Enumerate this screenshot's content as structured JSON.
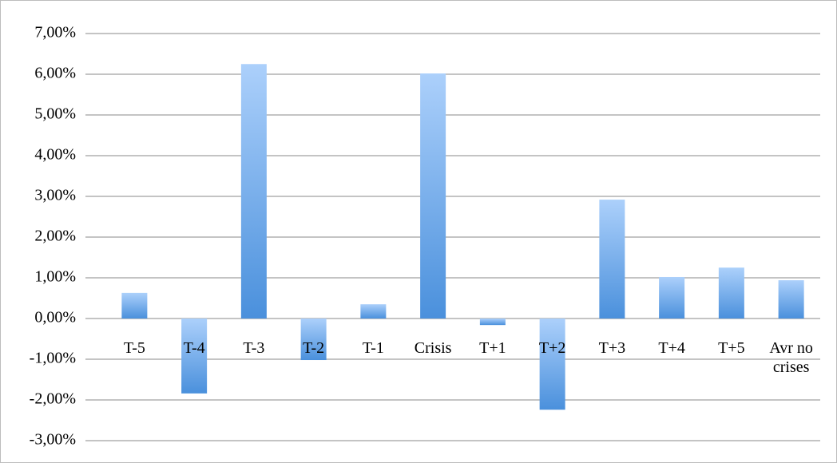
{
  "chart_data": {
    "type": "bar",
    "categories": [
      "T-5",
      "T-4",
      "T-3",
      "T-2",
      "T-1",
      "Crisis",
      "T+1",
      "T+2",
      "T+3",
      "T+4",
      "T+5",
      "Avr no crises"
    ],
    "values": [
      0.63,
      -1.84,
      6.25,
      -1.02,
      0.35,
      6.02,
      -0.16,
      -2.24,
      2.92,
      1.02,
      1.25,
      0.94
    ],
    "color": "#4a90dc",
    "ylim": [
      -3,
      7
    ],
    "yticks": [
      {
        "value": -3,
        "label": "-3,00%"
      },
      {
        "value": -2,
        "label": "-2,00%"
      },
      {
        "value": -1,
        "label": "-1,00%"
      },
      {
        "value": 0,
        "label": "0,00%"
      },
      {
        "value": 1,
        "label": "1,00%"
      },
      {
        "value": 2,
        "label": "2,00%"
      },
      {
        "value": 3,
        "label": "3,00%"
      },
      {
        "value": 4,
        "label": "4,00%"
      },
      {
        "value": 5,
        "label": "5,00%"
      },
      {
        "value": 6,
        "label": "6,00%"
      },
      {
        "value": 7,
        "label": "7,00%"
      }
    ],
    "grid": true
  }
}
